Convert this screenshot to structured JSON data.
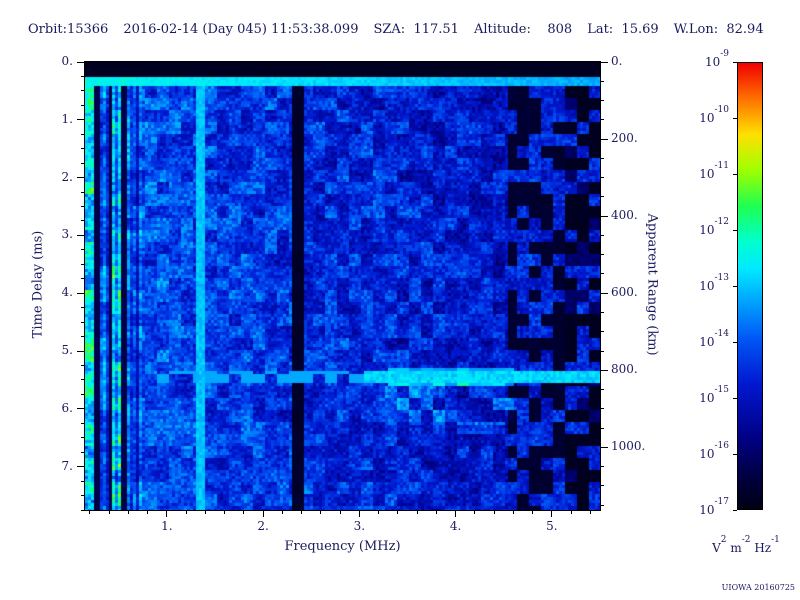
{
  "header": {
    "fields": [
      {
        "name": "orbit",
        "text": "Orbit:15366"
      },
      {
        "name": "datetime",
        "text": "2016-02-14 (Day 045) 11:53:38.099"
      },
      {
        "name": "sza",
        "text": "SZA:  117.51"
      },
      {
        "name": "altitude",
        "text": "Altitude:    808"
      },
      {
        "name": "latitude",
        "text": "Lat:  15.69"
      },
      {
        "name": "west-longitude",
        "text": "W.Lon:  82.94"
      }
    ]
  },
  "watermark": "UIOWA 20160725",
  "chart_data": {
    "type": "heatmap",
    "subtype": "radar-sounder-ionogram-spectrogram",
    "xlabel": "Frequency (MHz)",
    "ylabel_left": "Time Delay (ms)",
    "ylabel_right": "Apparent Range (km)",
    "x_range_mhz": [
      0.15,
      5.5
    ],
    "y_range_ms": [
      0,
      7.75
    ],
    "range_km_per_ms": 150,
    "x_minor_step_mhz": 0.2,
    "y_minor_step_ms": 0.25,
    "km_minor_step": 50,
    "x_ticks": [
      {
        "value": 1,
        "label": "1."
      },
      {
        "value": 2,
        "label": "2."
      },
      {
        "value": 3,
        "label": "3."
      },
      {
        "value": 4,
        "label": "4."
      },
      {
        "value": 5,
        "label": "5."
      }
    ],
    "y_ticks_ms": [
      {
        "value": 0,
        "label": "0."
      },
      {
        "value": 1,
        "label": "1."
      },
      {
        "value": 2,
        "label": "2."
      },
      {
        "value": 3,
        "label": "3."
      },
      {
        "value": 4,
        "label": "4."
      },
      {
        "value": 5,
        "label": "5."
      },
      {
        "value": 6,
        "label": "6."
      },
      {
        "value": 7,
        "label": "7."
      }
    ],
    "y_ticks_km": [
      {
        "value": 0,
        "label": "0."
      },
      {
        "value": 200,
        "label": "200."
      },
      {
        "value": 400,
        "label": "400."
      },
      {
        "value": 600,
        "label": "600."
      },
      {
        "value": 800,
        "label": "800."
      },
      {
        "value": 1000,
        "label": "1000."
      }
    ],
    "colorbar": {
      "ticks": [
        {
          "mantissa": "10",
          "exponent": "-9"
        },
        {
          "mantissa": "10",
          "exponent": "-10"
        },
        {
          "mantissa": "10",
          "exponent": "-11"
        },
        {
          "mantissa": "10",
          "exponent": "-12"
        },
        {
          "mantissa": "10",
          "exponent": "-13"
        },
        {
          "mantissa": "10",
          "exponent": "-14"
        },
        {
          "mantissa": "10",
          "exponent": "-15"
        },
        {
          "mantissa": "10",
          "exponent": "-16"
        },
        {
          "mantissa": "10",
          "exponent": "-17"
        }
      ],
      "unit_parts": [
        {
          "base": "V",
          "exp": "2"
        },
        {
          "base": "m",
          "exp": "-2"
        },
        {
          "base": "Hz",
          "exp": "-1"
        }
      ]
    },
    "colormap": [
      [
        0.0,
        "#000014"
      ],
      [
        0.06,
        "#000038"
      ],
      [
        0.16,
        "#000085"
      ],
      [
        0.28,
        "#0018d0"
      ],
      [
        0.38,
        "#0055f5"
      ],
      [
        0.47,
        "#00a8ff"
      ],
      [
        0.54,
        "#00eaff"
      ],
      [
        0.6,
        "#00ffcc"
      ],
      [
        0.68,
        "#20ff50"
      ],
      [
        0.76,
        "#a0ff00"
      ],
      [
        0.84,
        "#ffe000"
      ],
      [
        0.92,
        "#ff7000"
      ],
      [
        1.0,
        "#f00000"
      ]
    ],
    "features": [
      {
        "type": "top-black-band",
        "name": "blanking-band",
        "t_max_ms": 0.24
      },
      {
        "type": "bright-hline",
        "name": "transmit-pulse-line",
        "t_ms": [
          0.24,
          0.4
        ]
      },
      {
        "type": "bright-vline",
        "name": "plasma-resonance-line",
        "freq_mhz": 1.35,
        "half_width_mhz": 0.035
      },
      {
        "type": "dark-vband",
        "name": "absorption-gap",
        "freq_mhz": 2.35,
        "half_width_mhz": 0.065
      },
      {
        "type": "bright-hline-dashed",
        "name": "surface-reflection",
        "t_ms": 5.44,
        "half_width_ms": 0.1,
        "solid_from_mhz": 3.05,
        "dashed_from_mhz": 0.85,
        "apparent_range_km": 815
      },
      {
        "type": "diffuse-echo",
        "name": "subsurface-diffuse-echo",
        "t_ms": [
          5.55,
          6.25
        ],
        "freq_mhz": [
          3.2,
          4.6
        ]
      }
    ],
    "noise": {
      "seed": 20160214,
      "base_left": 0.37,
      "base_slope": 0.13,
      "speckle_amp": 0.3,
      "stripe_region_max_mhz": 0.75,
      "dark_stripes_mhz": [
        0.28,
        0.42,
        0.55
      ],
      "right_blotch_start_fx": 0.82
    }
  }
}
